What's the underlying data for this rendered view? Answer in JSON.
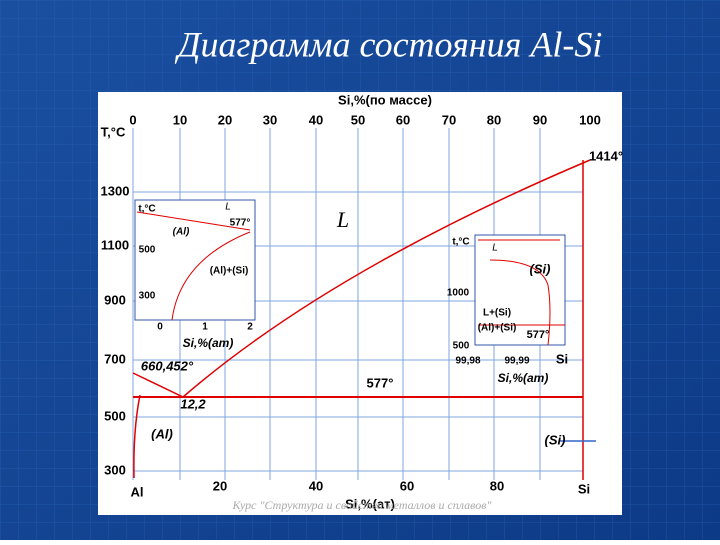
{
  "header": {
    "title": "Диаграмма состояния Al-Si"
  },
  "diagram": {
    "top_axis": {
      "label": "Si,%(по массе)",
      "ticks": [
        "0",
        "10",
        "20",
        "30",
        "40",
        "50",
        "60",
        "70",
        "80",
        "90",
        "100"
      ]
    },
    "left_axis": {
      "label": "T,°C",
      "ticks": [
        "1300",
        "1100",
        "900",
        "700",
        "500",
        "300"
      ]
    },
    "bottom_axis": {
      "label": "Si,%(ат)",
      "left_end": "Al",
      "right_end": "Si",
      "ticks": [
        "20",
        "40",
        "60",
        "80"
      ]
    },
    "annotations": {
      "si_melting": "1414°",
      "liquid": "L",
      "al_melting": "660,452°",
      "eutectic_point": "12,2",
      "eutectic_temp": "577°",
      "al_phase": "(Al)",
      "si_phase": "(Si)"
    },
    "inset_left": {
      "y_label": "t,°C",
      "liquid": "L",
      "eutectic_temp": "577°",
      "al_phase": "(Al)",
      "two_phase": "(Al)+(Si)",
      "y_ticks": [
        "500",
        "300"
      ],
      "x_ticks": [
        "0",
        "1",
        "2"
      ],
      "x_label": "Si,%(am)"
    },
    "inset_right": {
      "y_label": "t,°C",
      "liquid": "L",
      "si_phase": "(Si)",
      "y_ticks": [
        "1000",
        "500"
      ],
      "liquid_si": "L+(Si)",
      "two_phase": "(Al)+(Si)",
      "eutectic_temp": "577°",
      "x_ticks": [
        "99,98",
        "99,99"
      ],
      "x_end": "Si",
      "x_label": "Si,%(am)"
    }
  },
  "footer": {
    "course": "Курс \"Структура и свойства металлов и сплавов\""
  }
}
